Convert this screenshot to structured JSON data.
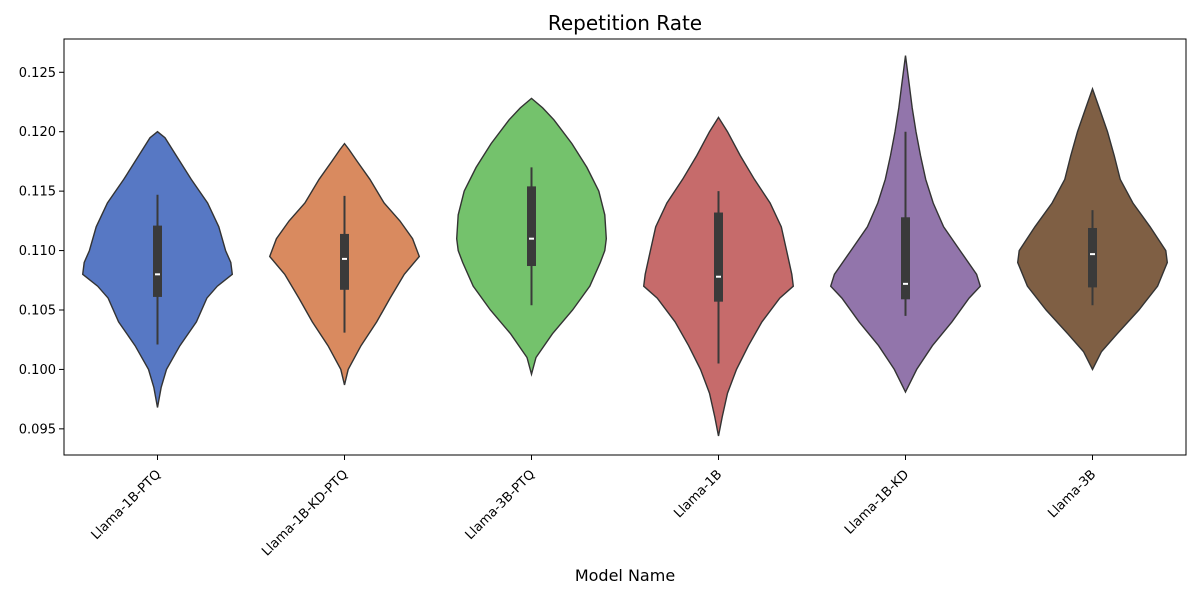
{
  "chart_data": {
    "type": "violin",
    "title": "Repetition Rate",
    "xlabel": "Model Name",
    "ylabel": "",
    "ylim": [
      0.0928,
      0.1278
    ],
    "yticks": [
      0.095,
      0.1,
      0.105,
      0.11,
      0.115,
      0.12,
      0.125
    ],
    "ytick_labels": [
      "0.095",
      "0.100",
      "0.105",
      "0.110",
      "0.115",
      "0.120",
      "0.125"
    ],
    "grid": false,
    "categories": [
      "Llama-1B-PTQ",
      "Llama-1B-KD-PTQ",
      "Llama-3B-PTQ",
      "Llama-1B",
      "Llama-1B-KD",
      "Llama-3B"
    ],
    "colors": [
      "#5778c4",
      "#d98a5f",
      "#74c26c",
      "#c66b6b",
      "#9275ab",
      "#7f5f44"
    ],
    "violins": [
      {
        "name": "Llama-1B-PTQ",
        "min": 0.1021,
        "q1": 0.1061,
        "median": 0.108,
        "q3": 0.1121,
        "max": 0.1147,
        "kde_ymin": 0.0968,
        "kde_ymax": 0.12,
        "profile": [
          [
            0.0968,
            0.0
          ],
          [
            0.0985,
            0.05
          ],
          [
            0.1,
            0.12
          ],
          [
            0.102,
            0.3
          ],
          [
            0.104,
            0.52
          ],
          [
            0.106,
            0.66
          ],
          [
            0.107,
            0.8
          ],
          [
            0.108,
            1.0
          ],
          [
            0.109,
            0.98
          ],
          [
            0.11,
            0.91
          ],
          [
            0.112,
            0.82
          ],
          [
            0.114,
            0.67
          ],
          [
            0.116,
            0.45
          ],
          [
            0.118,
            0.25
          ],
          [
            0.1195,
            0.1
          ],
          [
            0.12,
            0.0
          ]
        ]
      },
      {
        "name": "Llama-1B-KD-PTQ",
        "min": 0.1031,
        "q1": 0.1067,
        "median": 0.1093,
        "q3": 0.1114,
        "max": 0.1146,
        "kde_ymin": 0.0987,
        "kde_ymax": 0.119,
        "profile": [
          [
            0.0987,
            0.0
          ],
          [
            0.1,
            0.05
          ],
          [
            0.102,
            0.22
          ],
          [
            0.104,
            0.43
          ],
          [
            0.106,
            0.61
          ],
          [
            0.108,
            0.8
          ],
          [
            0.1095,
            1.0
          ],
          [
            0.111,
            0.91
          ],
          [
            0.1125,
            0.74
          ],
          [
            0.114,
            0.53
          ],
          [
            0.116,
            0.34
          ],
          [
            0.1175,
            0.17
          ],
          [
            0.1185,
            0.06
          ],
          [
            0.119,
            0.0
          ]
        ]
      },
      {
        "name": "Llama-3B-PTQ",
        "min": 0.1054,
        "q1": 0.1087,
        "median": 0.111,
        "q3": 0.1154,
        "max": 0.117,
        "kde_ymin": 0.0996,
        "kde_ymax": 0.1228,
        "profile": [
          [
            0.0996,
            0.0
          ],
          [
            0.101,
            0.06
          ],
          [
            0.103,
            0.28
          ],
          [
            0.105,
            0.55
          ],
          [
            0.107,
            0.78
          ],
          [
            0.109,
            0.92
          ],
          [
            0.11,
            0.98
          ],
          [
            0.111,
            1.0
          ],
          [
            0.113,
            0.98
          ],
          [
            0.115,
            0.9
          ],
          [
            0.117,
            0.74
          ],
          [
            0.119,
            0.54
          ],
          [
            0.121,
            0.3
          ],
          [
            0.122,
            0.15
          ],
          [
            0.1228,
            0.0
          ]
        ]
      },
      {
        "name": "Llama-1B",
        "min": 0.1005,
        "q1": 0.1057,
        "median": 0.1078,
        "q3": 0.1132,
        "max": 0.115,
        "kde_ymin": 0.0944,
        "kde_ymax": 0.1212,
        "profile": [
          [
            0.0944,
            0.0
          ],
          [
            0.096,
            0.05
          ],
          [
            0.098,
            0.12
          ],
          [
            0.1,
            0.24
          ],
          [
            0.102,
            0.4
          ],
          [
            0.104,
            0.58
          ],
          [
            0.106,
            0.82
          ],
          [
            0.107,
            1.0
          ],
          [
            0.108,
            0.98
          ],
          [
            0.11,
            0.91
          ],
          [
            0.112,
            0.84
          ],
          [
            0.114,
            0.69
          ],
          [
            0.116,
            0.48
          ],
          [
            0.118,
            0.29
          ],
          [
            0.12,
            0.12
          ],
          [
            0.1212,
            0.0
          ]
        ]
      },
      {
        "name": "Llama-1B-KD",
        "min": 0.1045,
        "q1": 0.1059,
        "median": 0.1072,
        "q3": 0.1128,
        "max": 0.12,
        "kde_ymin": 0.0981,
        "kde_ymax": 0.1264,
        "profile": [
          [
            0.0981,
            0.0
          ],
          [
            0.1,
            0.15
          ],
          [
            0.102,
            0.36
          ],
          [
            0.104,
            0.62
          ],
          [
            0.106,
            0.85
          ],
          [
            0.107,
            1.0
          ],
          [
            0.108,
            0.95
          ],
          [
            0.11,
            0.73
          ],
          [
            0.112,
            0.51
          ],
          [
            0.114,
            0.37
          ],
          [
            0.116,
            0.27
          ],
          [
            0.118,
            0.2
          ],
          [
            0.12,
            0.14
          ],
          [
            0.122,
            0.09
          ],
          [
            0.124,
            0.05
          ],
          [
            0.1264,
            0.0
          ]
        ]
      },
      {
        "name": "Llama-3B",
        "min": 0.1054,
        "q1": 0.1069,
        "median": 0.1097,
        "q3": 0.1119,
        "max": 0.1134,
        "kde_ymin": 0.1,
        "kde_ymax": 0.1236,
        "profile": [
          [
            0.1,
            0.0
          ],
          [
            0.1015,
            0.12
          ],
          [
            0.103,
            0.33
          ],
          [
            0.105,
            0.62
          ],
          [
            0.107,
            0.87
          ],
          [
            0.109,
            1.0
          ],
          [
            0.11,
            0.98
          ],
          [
            0.112,
            0.77
          ],
          [
            0.114,
            0.54
          ],
          [
            0.116,
            0.37
          ],
          [
            0.118,
            0.29
          ],
          [
            0.12,
            0.2
          ],
          [
            0.122,
            0.09
          ],
          [
            0.1236,
            0.0
          ]
        ]
      }
    ]
  }
}
